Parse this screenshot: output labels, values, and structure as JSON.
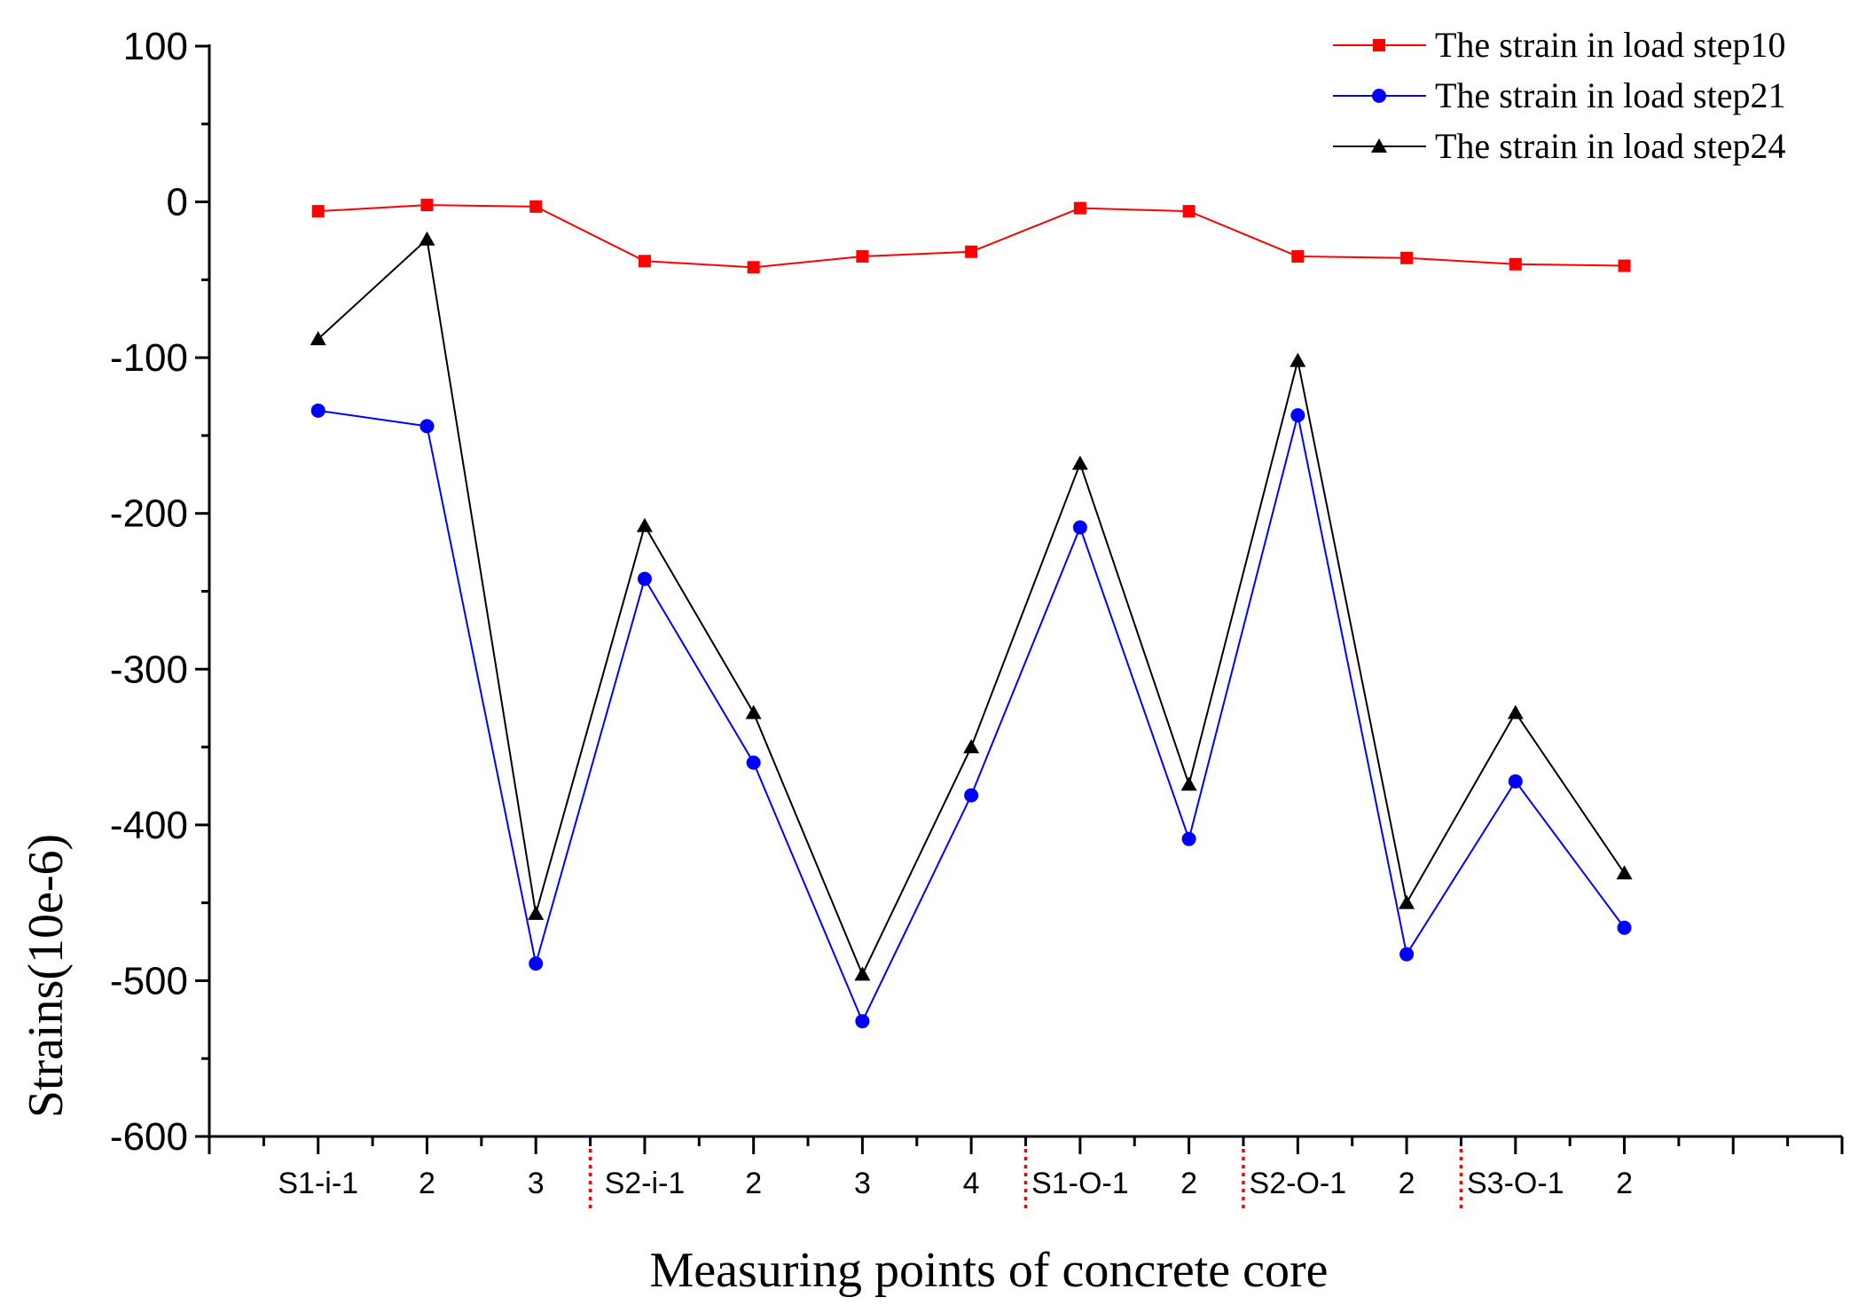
{
  "chart_data": {
    "type": "line",
    "title": "",
    "xlabel": "Measuring points of concrete core",
    "ylabel": "Strains(10e-6)",
    "ylim": [
      -600,
      100
    ],
    "yticks": [
      100,
      0,
      -100,
      -200,
      -300,
      -400,
      -500,
      -600
    ],
    "ytick_labels": [
      "100",
      "0",
      "-100",
      "-200",
      "-300",
      "-400",
      "-500",
      "-600"
    ],
    "x_range": [
      0,
      15
    ],
    "x_minor_step": 0.5,
    "categories": [
      "S1-i-1",
      "2",
      "3",
      "S2-i-1",
      "2",
      "3",
      "4",
      "S1-O-1",
      "2",
      "S2-O-1",
      "2",
      "S3-O-1",
      "2"
    ],
    "x": [
      1,
      2,
      3,
      4,
      5,
      6,
      7,
      8,
      9,
      10,
      11,
      12,
      13
    ],
    "group_separators": [
      3.5,
      7.5,
      9.5,
      11.5
    ],
    "separator_color": "#ff0000",
    "legend_position": "top-right",
    "grid": false,
    "series": [
      {
        "name": "The strain in load step10",
        "color": "#ff0000",
        "marker": "square",
        "values": [
          -6,
          -2,
          -3,
          -38,
          -42,
          -35,
          -32,
          -4,
          -6,
          -35,
          -36,
          -40,
          -41
        ]
      },
      {
        "name": "The strain in load step21",
        "color": "#0000ff",
        "marker": "circle",
        "values": [
          -134,
          -144,
          -489,
          -242,
          -360,
          -526,
          -381,
          -209,
          -409,
          -137,
          -483,
          -372,
          -466
        ]
      },
      {
        "name": "The strain in load step24",
        "color": "#000000",
        "marker": "triangle",
        "values": [
          -88,
          -24,
          -457,
          -208,
          -328,
          -496,
          -350,
          -168,
          -374,
          -102,
          -450,
          -328,
          -431
        ]
      }
    ]
  }
}
